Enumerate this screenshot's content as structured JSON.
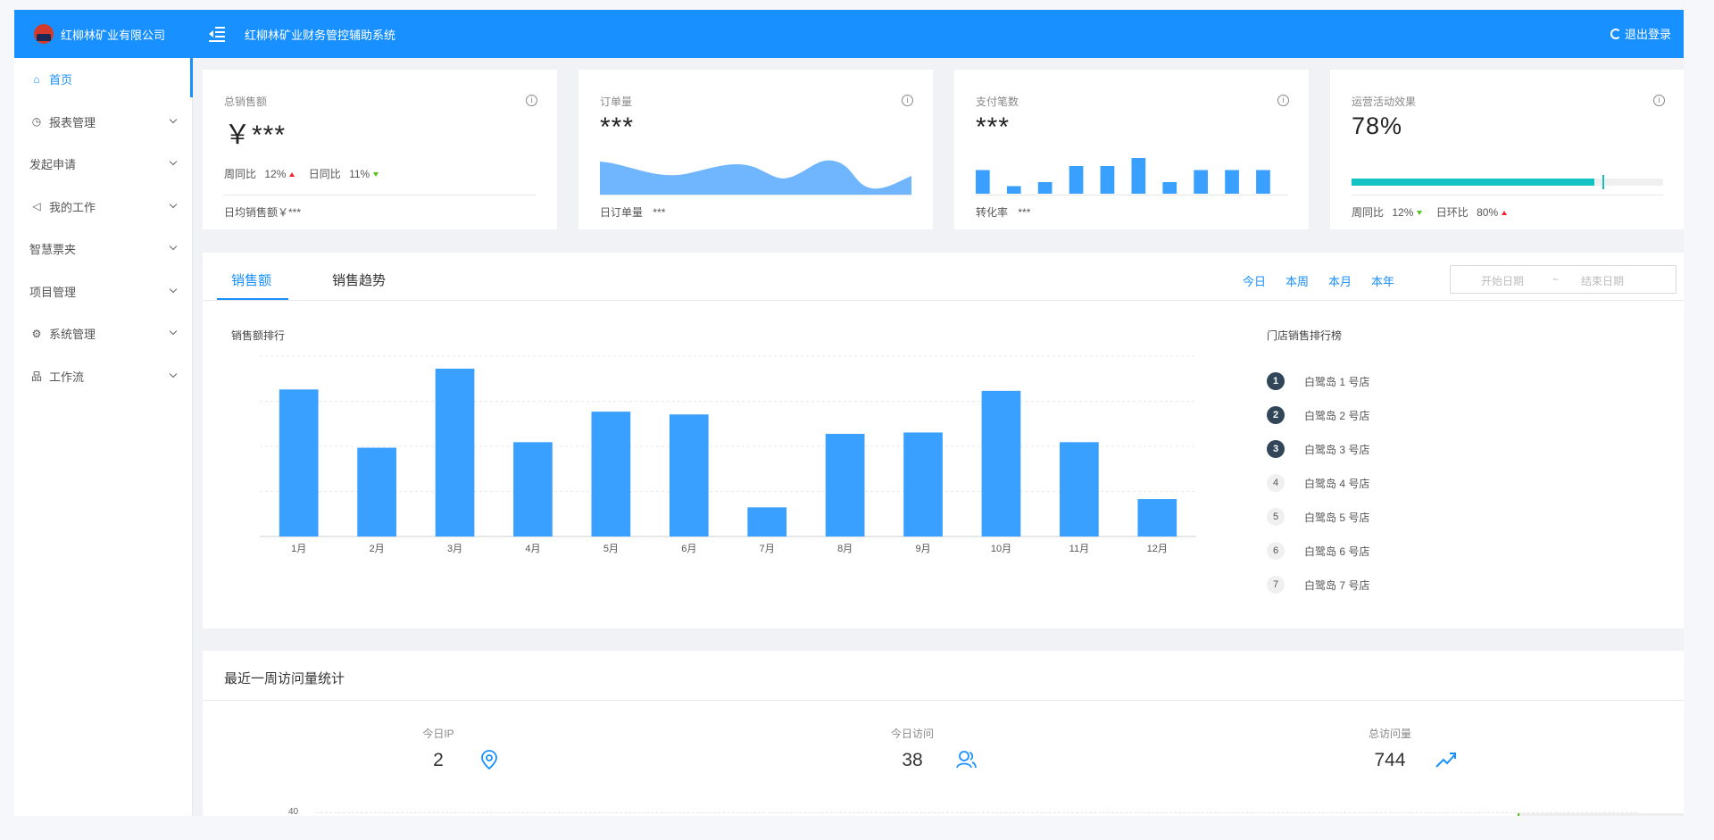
{
  "header": {
    "company": "红柳林矿业有限公司",
    "system_title": "红柳林矿业财务管控辅助系统",
    "logout_label": "退出登录"
  },
  "sidebar": {
    "items": [
      {
        "label": "首页",
        "icon": "home-icon",
        "active": true,
        "has_children": false
      },
      {
        "label": "报表管理",
        "icon": "clock-icon",
        "active": false,
        "has_children": true
      },
      {
        "label": "发起申请",
        "icon": "",
        "active": false,
        "has_children": true
      },
      {
        "label": "我的工作",
        "icon": "flag-icon",
        "active": false,
        "has_children": true
      },
      {
        "label": "智慧票夹",
        "icon": "",
        "active": false,
        "has_children": true
      },
      {
        "label": "项目管理",
        "icon": "",
        "active": false,
        "has_children": true
      },
      {
        "label": "系统管理",
        "icon": "gear-icon",
        "active": false,
        "has_children": true
      },
      {
        "label": "工作流",
        "icon": "sitemap-icon",
        "active": false,
        "has_children": true
      }
    ]
  },
  "cards": {
    "sales": {
      "title": "总销售额",
      "value": "￥***",
      "week_label": "周同比",
      "week_value": "12%",
      "day_label": "日同比",
      "day_value": "11%",
      "footer": "日均销售额￥***"
    },
    "orders": {
      "title": "订单量",
      "value": "***",
      "footer_label": "日订单量",
      "footer_value": "***"
    },
    "payments": {
      "title": "支付笔数",
      "value": "***",
      "footer_label": "转化率",
      "footer_value": "***",
      "bars": [
        5,
        1,
        2,
        6,
        6,
        8,
        2,
        5,
        5,
        5
      ]
    },
    "campaign": {
      "title": "运营活动效果",
      "value": "78%",
      "progress": 0.78,
      "target": 0.805,
      "week_label": "周同比",
      "week_value": "12%",
      "day_label": "日环比",
      "day_value": "80%"
    }
  },
  "sales_panel": {
    "tabs": [
      "销售额",
      "销售趋势"
    ],
    "ranges": [
      "今日",
      "本周",
      "本月",
      "本年"
    ],
    "start_placeholder": "开始日期",
    "separator": "~",
    "end_placeholder": "结束日期",
    "chart_heading": "销售额排行",
    "ranking_heading": "门店销售排行榜",
    "ranking": [
      {
        "rank": "1",
        "name": "白鹭岛 1 号店"
      },
      {
        "rank": "2",
        "name": "白鹭岛 2 号店"
      },
      {
        "rank": "3",
        "name": "白鹭岛 3 号店"
      },
      {
        "rank": "4",
        "name": "白鹭岛 4 号店"
      },
      {
        "rank": "5",
        "name": "白鹭岛 5 号店"
      },
      {
        "rank": "6",
        "name": "白鹭岛 6 号店"
      },
      {
        "rank": "7",
        "name": "白鹭岛 7 号店"
      }
    ]
  },
  "chart_data": {
    "type": "bar",
    "categories": [
      "1月",
      "2月",
      "3月",
      "4月",
      "5月",
      "6月",
      "7月",
      "8月",
      "9月",
      "10月",
      "11月",
      "12月"
    ],
    "values": [
      1060,
      640,
      1210,
      680,
      900,
      880,
      210,
      740,
      750,
      1050,
      680,
      270
    ],
    "ylim": [
      0,
      1300
    ],
    "grid": true,
    "color": "#3aa0ff"
  },
  "visits": {
    "title": "最近一周访问量统计",
    "stats": [
      {
        "label": "今日IP",
        "value": "2",
        "icon": "location-pin-icon"
      },
      {
        "label": "今日访问",
        "value": "38",
        "icon": "users-icon"
      },
      {
        "label": "总访问量",
        "value": "744",
        "icon": "trend-up-icon"
      }
    ],
    "y_top_tick": "40"
  },
  "colors": {
    "primary": "#1890ff",
    "teal": "#13c2c2",
    "up": "#f5222d",
    "down": "#52c41a"
  }
}
